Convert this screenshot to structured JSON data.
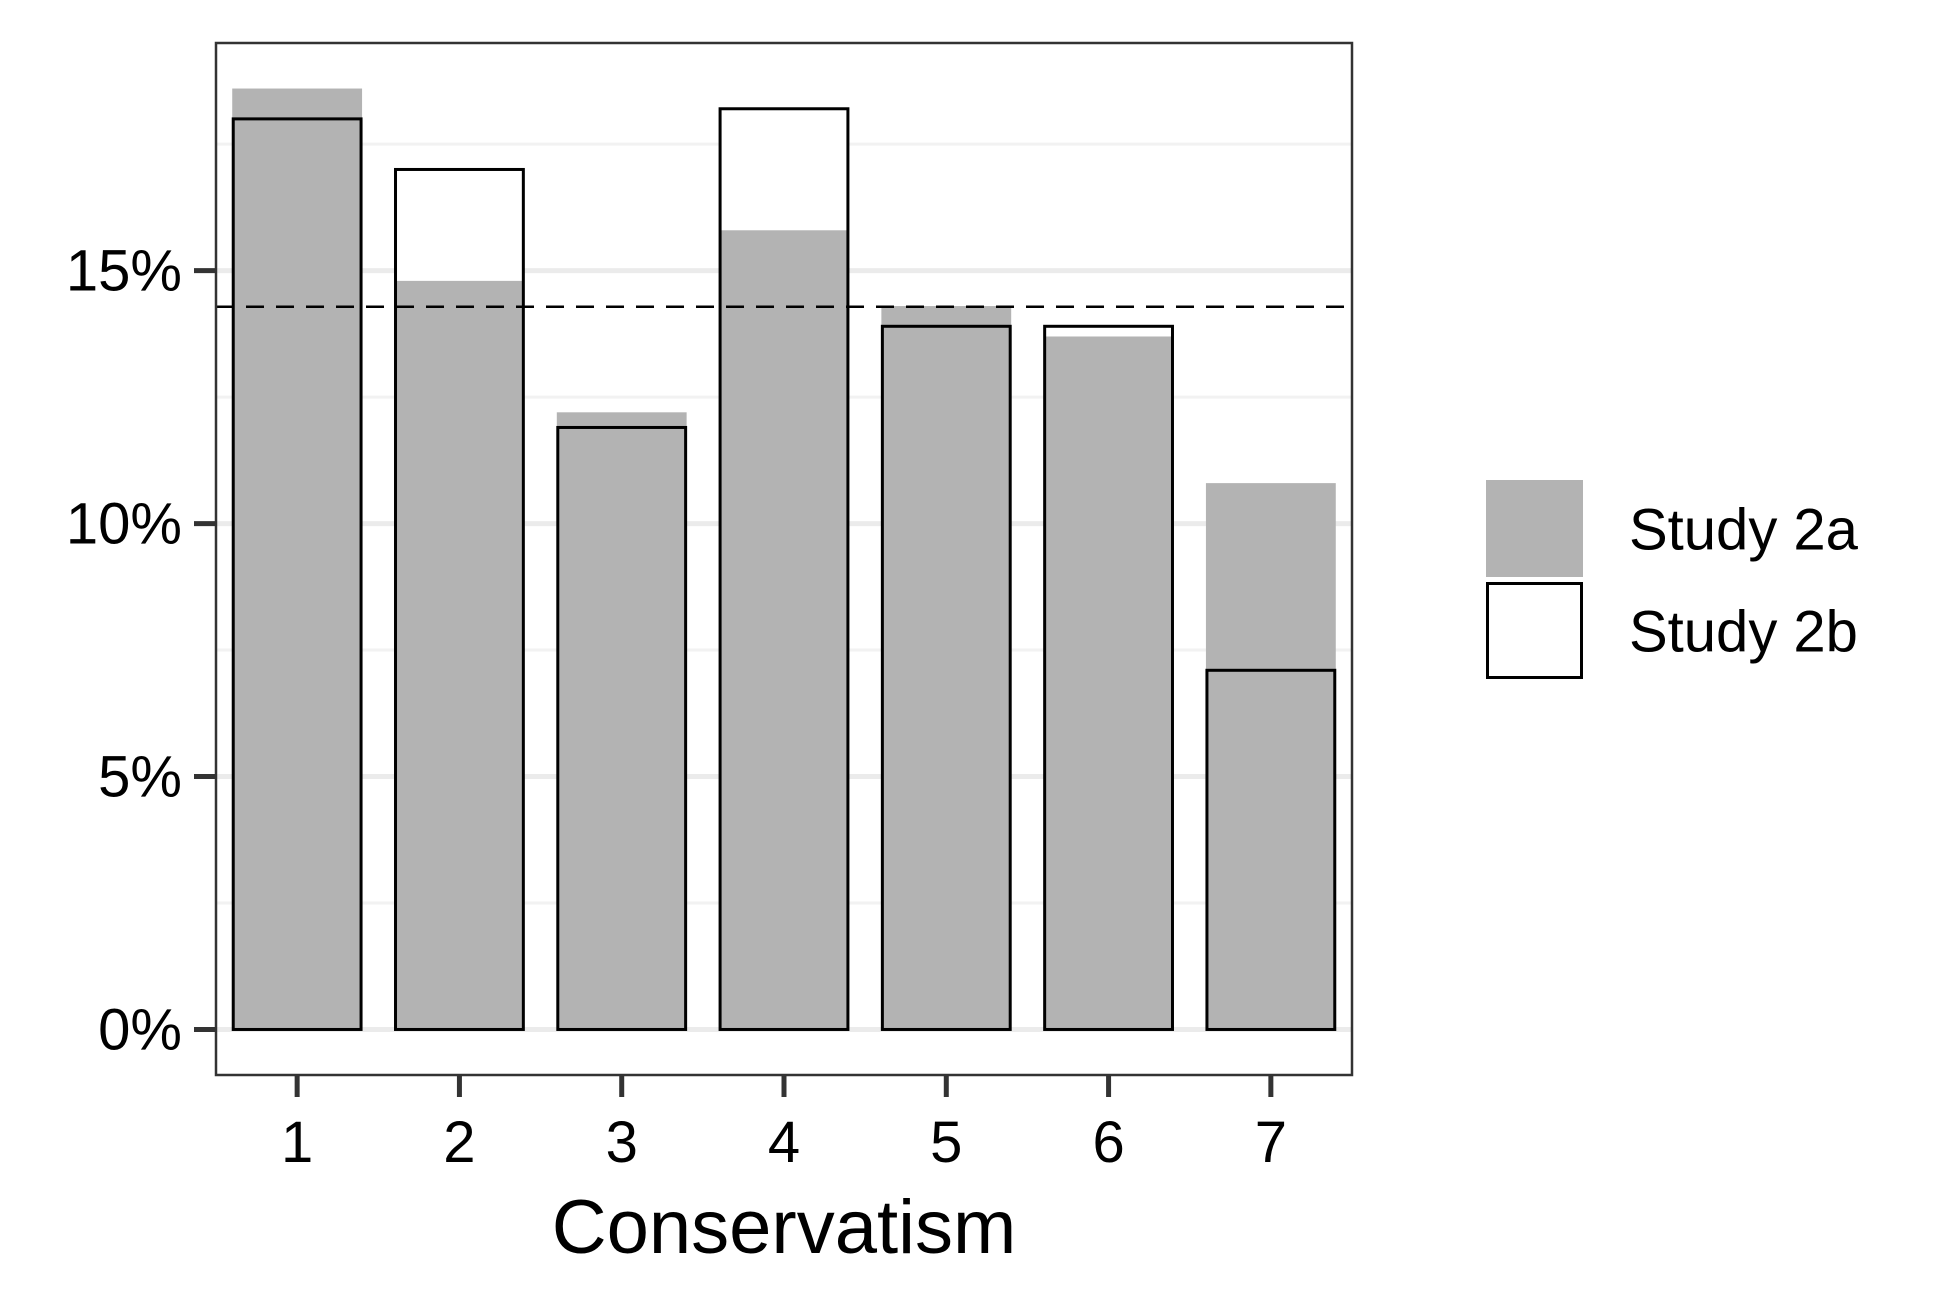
{
  "chart_data": {
    "type": "bar",
    "xlabel": "Conservatism",
    "ylabel": "",
    "categories": [
      "1",
      "2",
      "3",
      "4",
      "5",
      "6",
      "7"
    ],
    "series": [
      {
        "name": "Study 2a",
        "values": [
          18.6,
          14.8,
          12.2,
          15.8,
          14.3,
          13.7,
          10.8
        ],
        "fill": "#b3b3b3"
      },
      {
        "name": "Study 2b",
        "values": [
          18.0,
          17.0,
          11.9,
          18.2,
          13.9,
          13.9,
          7.1
        ],
        "fill": "#ffffff",
        "stroke": "#000000"
      }
    ],
    "reference_line": {
      "value": 14.286,
      "style": "dashed"
    },
    "ylim": [
      -0.9,
      19.5
    ],
    "yticks": [
      0,
      5,
      10,
      15
    ],
    "ytick_labels": [
      "0%",
      "5%",
      "10%",
      "15%"
    ],
    "grid": true,
    "legend_position": "right"
  }
}
